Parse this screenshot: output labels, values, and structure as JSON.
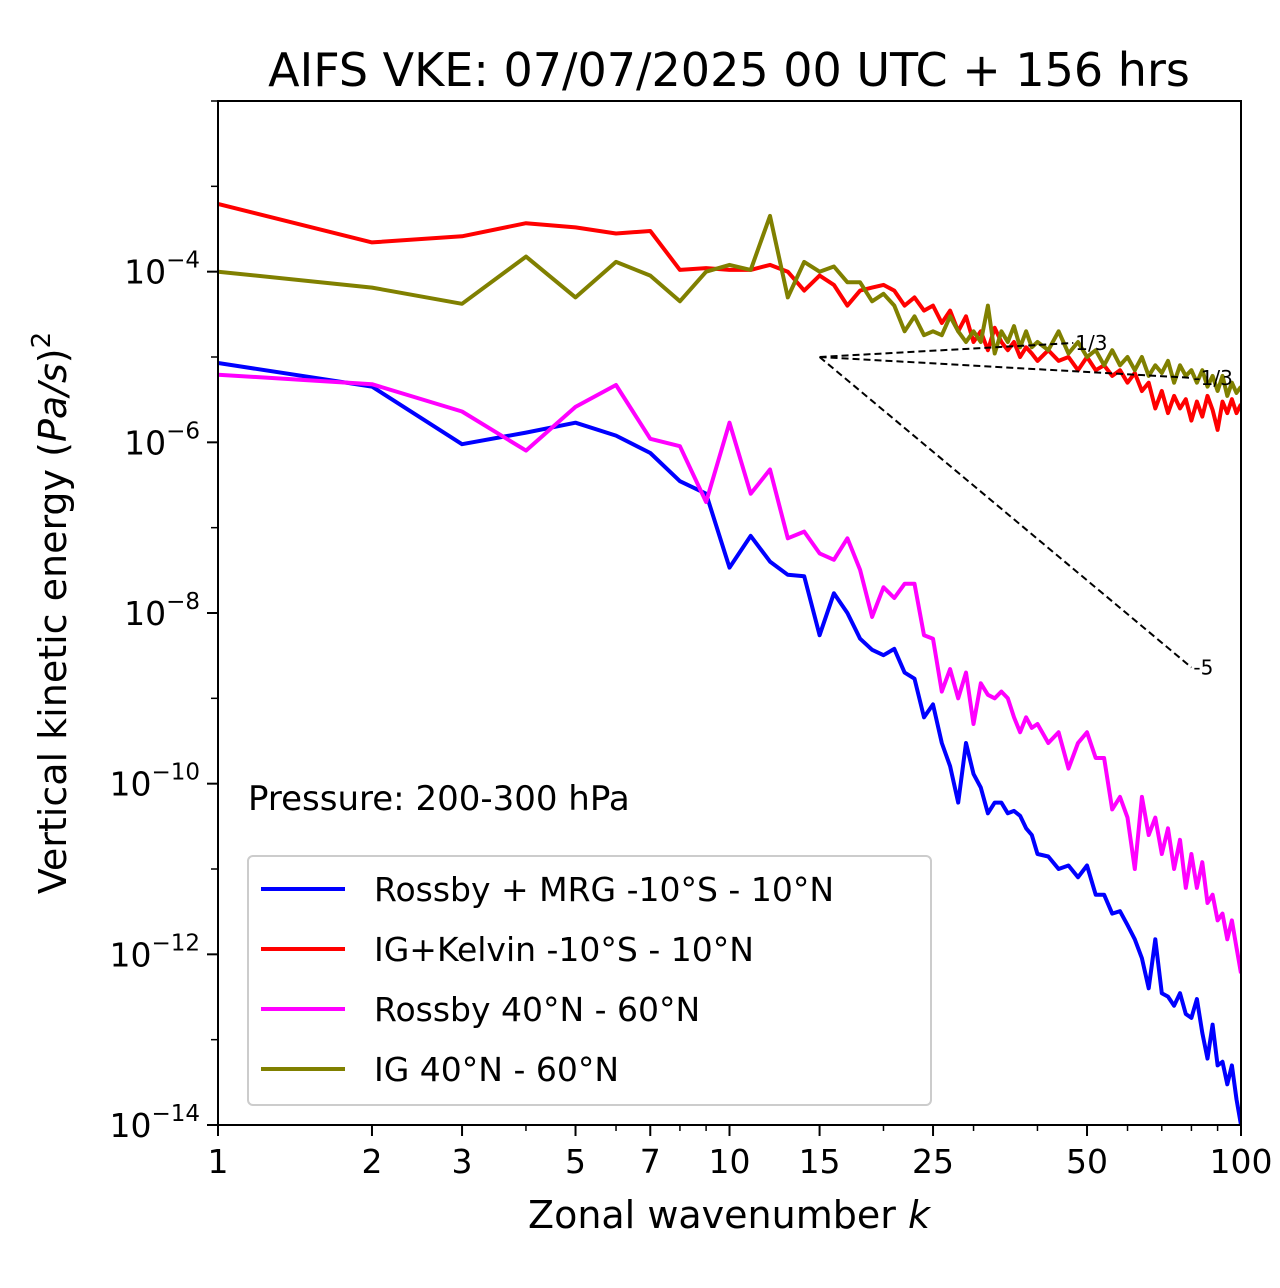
{
  "chart_data": {
    "type": "line",
    "title": "AIFS VKE: 07/07/2025 00 UTC + 156 hrs",
    "xlabel": "Zonal wavenumber k",
    "ylabel": "Vertical kinetic energy (Pa/s)^2",
    "x_scale": "log",
    "y_scale": "log",
    "xlim": [
      1,
      100
    ],
    "ylim": [
      1e-14,
      0.01
    ],
    "x_ticks": [
      {
        "value": 1,
        "label": "1"
      },
      {
        "value": 2,
        "label": "2"
      },
      {
        "value": 3,
        "label": "3"
      },
      {
        "value": 5,
        "label": "5"
      },
      {
        "value": 7,
        "label": "7"
      },
      {
        "value": 10,
        "label": "10"
      },
      {
        "value": 15,
        "label": "15"
      },
      {
        "value": 25,
        "label": "25"
      },
      {
        "value": 50,
        "label": "50"
      },
      {
        "value": 100,
        "label": "100"
      }
    ],
    "y_ticks": [
      {
        "value": 1e-14,
        "label": "10",
        "exp": "−14"
      },
      {
        "value": 1e-12,
        "label": "10",
        "exp": "−12"
      },
      {
        "value": 1e-10,
        "label": "10",
        "exp": "−10"
      },
      {
        "value": 1e-08,
        "label": "10",
        "exp": "−8"
      },
      {
        "value": 1e-06,
        "label": "10",
        "exp": "−6"
      },
      {
        "value": 0.0001,
        "label": "10",
        "exp": "−4"
      }
    ],
    "annotation_text": "Pressure: 200-300 hPa",
    "legend_placement": "lower-left",
    "grid": false,
    "series": [
      {
        "name": "Rossby + MRG -10°S - 10°N",
        "color": "#0000ff",
        "points": [
          [
            1,
            8.5e-06
          ],
          [
            2,
            4.5e-06
          ],
          [
            3,
            9.5e-07
          ],
          [
            4,
            1.3e-06
          ],
          [
            5,
            1.7e-06
          ],
          [
            6,
            1.2e-06
          ],
          [
            7,
            7.5e-07
          ],
          [
            8,
            3.5e-07
          ],
          [
            9,
            2.5e-07
          ],
          [
            10,
            3.4e-08
          ],
          [
            11,
            8e-08
          ],
          [
            12,
            4e-08
          ],
          [
            13,
            2.8e-08
          ],
          [
            14,
            2.7e-08
          ],
          [
            15,
            5.5e-09
          ],
          [
            16,
            1.7e-08
          ],
          [
            17,
            1e-08
          ],
          [
            18,
            5e-09
          ],
          [
            19,
            3.7e-09
          ],
          [
            20,
            3.2e-09
          ],
          [
            21,
            3.8e-09
          ],
          [
            22,
            2e-09
          ],
          [
            23,
            1.7e-09
          ],
          [
            24,
            6e-10
          ],
          [
            25,
            8.5e-10
          ],
          [
            26,
            3e-10
          ],
          [
            27,
            1.6e-10
          ],
          [
            28,
            6e-11
          ],
          [
            29,
            3e-10
          ],
          [
            30,
            1.3e-10
          ],
          [
            31,
            9e-11
          ],
          [
            32,
            4.5e-11
          ],
          [
            33,
            6e-11
          ],
          [
            34,
            6e-11
          ],
          [
            35,
            4.5e-11
          ],
          [
            36,
            4.8e-11
          ],
          [
            37,
            4.2e-11
          ],
          [
            38,
            3e-11
          ],
          [
            39,
            2.5e-11
          ],
          [
            40,
            1.5e-11
          ],
          [
            42,
            1.4e-11
          ],
          [
            44,
            1e-11
          ],
          [
            46,
            1.1e-11
          ],
          [
            48,
            8e-12
          ],
          [
            50,
            1.1e-11
          ],
          [
            52,
            5e-12
          ],
          [
            54,
            5e-12
          ],
          [
            56,
            3e-12
          ],
          [
            58,
            3.2e-12
          ],
          [
            60,
            2.2e-12
          ],
          [
            62,
            1.5e-12
          ],
          [
            64,
            9e-13
          ],
          [
            66,
            4e-13
          ],
          [
            68,
            1.5e-12
          ],
          [
            70,
            3.5e-13
          ],
          [
            72,
            3.2e-13
          ],
          [
            74,
            2.5e-13
          ],
          [
            76,
            3.5e-13
          ],
          [
            78,
            2e-13
          ],
          [
            80,
            1.8e-13
          ],
          [
            82,
            3e-13
          ],
          [
            84,
            1.2e-13
          ],
          [
            86,
            6e-14
          ],
          [
            88,
            1.5e-13
          ],
          [
            90,
            5e-14
          ],
          [
            92,
            5.5e-14
          ],
          [
            94,
            3e-14
          ],
          [
            96,
            5e-14
          ],
          [
            98,
            2e-14
          ],
          [
            100,
            1e-14
          ]
        ]
      },
      {
        "name": "IG+Kelvin -10°S - 10°N",
        "color": "#ff0000",
        "points": [
          [
            1,
            0.00062
          ],
          [
            2,
            0.00022
          ],
          [
            3,
            0.00026
          ],
          [
            4,
            0.00037
          ],
          [
            5,
            0.00033
          ],
          [
            6,
            0.00028
          ],
          [
            7,
            0.0003
          ],
          [
            8,
            0.000105
          ],
          [
            9,
            0.00011
          ],
          [
            10,
            0.000105
          ],
          [
            11,
            0.000105
          ],
          [
            12,
            0.00012
          ],
          [
            13,
            0.0001
          ],
          [
            14,
            6e-05
          ],
          [
            15,
            9e-05
          ],
          [
            16,
            7e-05
          ],
          [
            17,
            4e-05
          ],
          [
            18,
            6e-05
          ],
          [
            19,
            6.5e-05
          ],
          [
            20,
            7e-05
          ],
          [
            21,
            6e-05
          ],
          [
            22,
            4e-05
          ],
          [
            23,
            5e-05
          ],
          [
            24,
            3.5e-05
          ],
          [
            25,
            4e-05
          ],
          [
            26,
            2.5e-05
          ],
          [
            27,
            3.5e-05
          ],
          [
            28,
            2e-05
          ],
          [
            29,
            3e-05
          ],
          [
            30,
            1.5e-05
          ],
          [
            31,
            2e-05
          ],
          [
            32,
            1.2e-05
          ],
          [
            33,
            2.2e-05
          ],
          [
            34,
            1.5e-05
          ],
          [
            35,
            1.2e-05
          ],
          [
            36,
            1.5e-05
          ],
          [
            37,
            1e-05
          ],
          [
            38,
            1.3e-05
          ],
          [
            39,
            1.1e-05
          ],
          [
            40,
            9e-06
          ],
          [
            42,
            1.2e-05
          ],
          [
            44,
            9e-06
          ],
          [
            46,
            1e-05
          ],
          [
            48,
            7e-06
          ],
          [
            50,
            1e-05
          ],
          [
            52,
            7e-06
          ],
          [
            54,
            8e-06
          ],
          [
            56,
            6e-06
          ],
          [
            58,
            7e-06
          ],
          [
            60,
            5e-06
          ],
          [
            62,
            6.5e-06
          ],
          [
            64,
            4e-06
          ],
          [
            66,
            5e-06
          ],
          [
            68,
            2.5e-06
          ],
          [
            70,
            4e-06
          ],
          [
            72,
            2.2e-06
          ],
          [
            74,
            3.5e-06
          ],
          [
            76,
            2.5e-06
          ],
          [
            78,
            3.2e-06
          ],
          [
            80,
            1.8e-06
          ],
          [
            82,
            3e-06
          ],
          [
            84,
            2e-06
          ],
          [
            86,
            3.5e-06
          ],
          [
            88,
            2.4e-06
          ],
          [
            90,
            1.4e-06
          ],
          [
            92,
            3e-06
          ],
          [
            94,
            2.2e-06
          ],
          [
            96,
            3.2e-06
          ],
          [
            98,
            2.2e-06
          ],
          [
            100,
            2.8e-06
          ]
        ]
      },
      {
        "name": "Rossby 40°N - 60°N",
        "color": "#ff00ff",
        "points": [
          [
            1,
            6.2e-06
          ],
          [
            2,
            4.8e-06
          ],
          [
            3,
            2.3e-06
          ],
          [
            4,
            8e-07
          ],
          [
            5,
            2.6e-06
          ],
          [
            6,
            4.7e-06
          ],
          [
            7,
            1.1e-06
          ],
          [
            8,
            9e-07
          ],
          [
            9,
            2e-07
          ],
          [
            10,
            1.7e-06
          ],
          [
            11,
            2.5e-07
          ],
          [
            12,
            4.8e-07
          ],
          [
            13,
            7.5e-08
          ],
          [
            14,
            9e-08
          ],
          [
            15,
            5e-08
          ],
          [
            16,
            4.2e-08
          ],
          [
            17,
            7.5e-08
          ],
          [
            18,
            3.2e-08
          ],
          [
            19,
            9e-09
          ],
          [
            20,
            2e-08
          ],
          [
            21,
            1.5e-08
          ],
          [
            22,
            2.2e-08
          ],
          [
            23,
            2.2e-08
          ],
          [
            24,
            5.5e-09
          ],
          [
            25,
            5e-09
          ],
          [
            26,
            1.2e-09
          ],
          [
            27,
            2.2e-09
          ],
          [
            28,
            1e-09
          ],
          [
            29,
            2e-09
          ],
          [
            30,
            5e-10
          ],
          [
            31,
            1.5e-09
          ],
          [
            32,
            1.1e-09
          ],
          [
            33,
            1e-09
          ],
          [
            34,
            1.2e-09
          ],
          [
            35,
            1e-09
          ],
          [
            36,
            6e-10
          ],
          [
            37,
            4e-10
          ],
          [
            38,
            6e-10
          ],
          [
            39,
            4.5e-10
          ],
          [
            40,
            5e-10
          ],
          [
            42,
            3e-10
          ],
          [
            44,
            4e-10
          ],
          [
            46,
            1.5e-10
          ],
          [
            48,
            3e-10
          ],
          [
            50,
            4e-10
          ],
          [
            52,
            2e-10
          ],
          [
            54,
            2e-10
          ],
          [
            56,
            5e-11
          ],
          [
            58,
            7e-11
          ],
          [
            60,
            4e-11
          ],
          [
            62,
            1e-11
          ],
          [
            64,
            7e-11
          ],
          [
            66,
            2.5e-11
          ],
          [
            68,
            4e-11
          ],
          [
            70,
            1.5e-11
          ],
          [
            72,
            3e-11
          ],
          [
            74,
            1e-11
          ],
          [
            76,
            2.2e-11
          ],
          [
            78,
            6e-12
          ],
          [
            80,
            1.5e-11
          ],
          [
            82,
            6e-12
          ],
          [
            84,
            1.2e-11
          ],
          [
            86,
            4e-12
          ],
          [
            88,
            5e-12
          ],
          [
            90,
            2.5e-12
          ],
          [
            92,
            3e-12
          ],
          [
            94,
            1.5e-12
          ],
          [
            96,
            2.5e-12
          ],
          [
            98,
            1.2e-12
          ],
          [
            100,
            6e-13
          ]
        ]
      },
      {
        "name": "IG 40°N - 60°N",
        "color": "#808000",
        "points": [
          [
            1,
            0.0001
          ],
          [
            2,
            6.5e-05
          ],
          [
            3,
            4.2e-05
          ],
          [
            4,
            0.00015
          ],
          [
            5,
            5e-05
          ],
          [
            6,
            0.00013
          ],
          [
            7,
            9e-05
          ],
          [
            8,
            4.5e-05
          ],
          [
            9,
            0.0001
          ],
          [
            10,
            0.00012
          ],
          [
            11,
            0.000105
          ],
          [
            12,
            0.00045
          ],
          [
            13,
            5e-05
          ],
          [
            14,
            0.00013
          ],
          [
            15,
            0.0001
          ],
          [
            16,
            0.000115
          ],
          [
            17,
            7.5e-05
          ],
          [
            18,
            7.5e-05
          ],
          [
            19,
            4.5e-05
          ],
          [
            20,
            5.5e-05
          ],
          [
            21,
            4e-05
          ],
          [
            22,
            2e-05
          ],
          [
            23,
            3e-05
          ],
          [
            24,
            1.8e-05
          ],
          [
            25,
            2e-05
          ],
          [
            26,
            1.8e-05
          ],
          [
            27,
            3e-05
          ],
          [
            28,
            2e-05
          ],
          [
            29,
            1.5e-05
          ],
          [
            30,
            2e-05
          ],
          [
            31,
            1.5e-05
          ],
          [
            32,
            4e-05
          ],
          [
            33,
            1.1e-05
          ],
          [
            34,
            2e-05
          ],
          [
            35,
            1.5e-05
          ],
          [
            36,
            2.3e-05
          ],
          [
            37,
            1.3e-05
          ],
          [
            38,
            2e-05
          ],
          [
            39,
            1.3e-05
          ],
          [
            40,
            1.5e-05
          ],
          [
            42,
            1.2e-05
          ],
          [
            44,
            2e-05
          ],
          [
            46,
            1.1e-05
          ],
          [
            48,
            1.5e-05
          ],
          [
            50,
            1e-05
          ],
          [
            52,
            1.2e-05
          ],
          [
            54,
            8e-06
          ],
          [
            56,
            1.2e-05
          ],
          [
            58,
            8e-06
          ],
          [
            60,
            1e-05
          ],
          [
            62,
            7e-06
          ],
          [
            64,
            1e-05
          ],
          [
            66,
            6e-06
          ],
          [
            68,
            8e-06
          ],
          [
            70,
            6.5e-06
          ],
          [
            72,
            9e-06
          ],
          [
            74,
            5e-06
          ],
          [
            76,
            8e-06
          ],
          [
            78,
            6e-06
          ],
          [
            80,
            7e-06
          ],
          [
            82,
            5e-06
          ],
          [
            84,
            7e-06
          ],
          [
            86,
            4.5e-06
          ],
          [
            88,
            6e-06
          ],
          [
            90,
            4e-06
          ],
          [
            92,
            6e-06
          ],
          [
            94,
            3.5e-06
          ],
          [
            96,
            5e-06
          ],
          [
            98,
            3.8e-06
          ],
          [
            100,
            4.5e-06
          ]
        ]
      }
    ],
    "reference_lines": [
      {
        "label": "-1/3",
        "start": [
          15,
          1e-05
        ],
        "end": [
          80,
          5.7e-06
        ]
      },
      {
        "label": "1/3",
        "start": [
          15,
          1e-05
        ],
        "end": [
          47,
          1.46e-05
        ]
      },
      {
        "label": "-5",
        "start": [
          15,
          1e-05
        ],
        "end": [
          80,
          2.3e-09
        ]
      }
    ]
  }
}
